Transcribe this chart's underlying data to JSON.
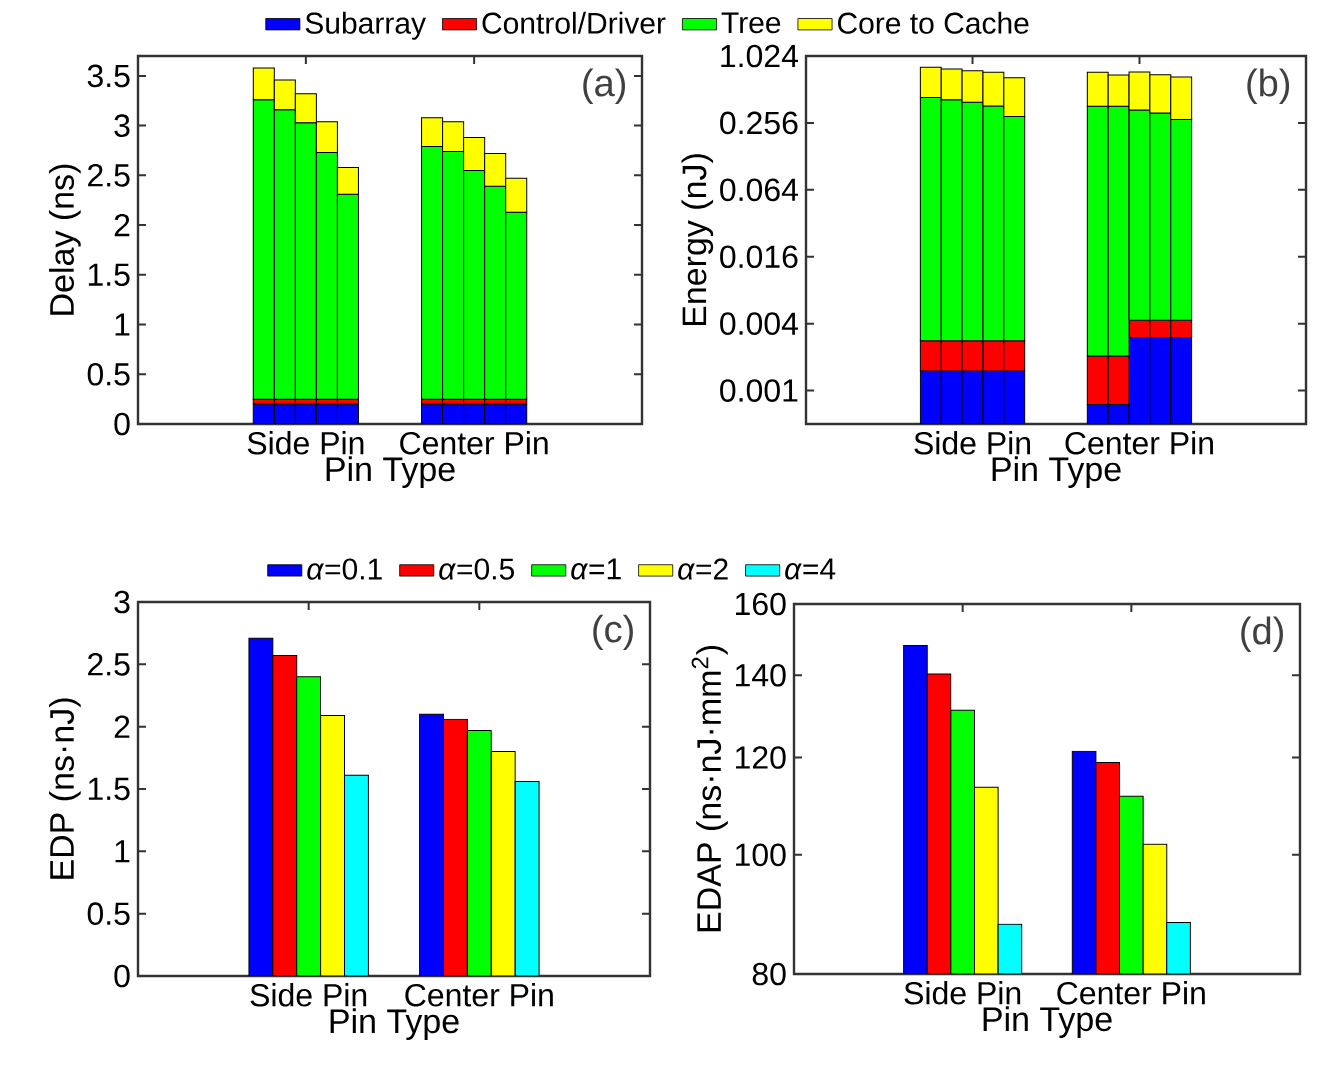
{
  "chart_data": [
    {
      "type": "bar",
      "stacked": true,
      "legend": "top",
      "xlabel": "Pin Type",
      "ylabel": "Delay (ns)",
      "annotations": [
        "(a)"
      ],
      "ylim": [
        0,
        3.7
      ],
      "yticks": [
        0,
        0.5,
        1,
        1.5,
        2,
        2.5,
        3,
        3.5
      ],
      "categories": [
        null,
        null,
        "Side Pin",
        null,
        null,
        null,
        null,
        null,
        null,
        null,
        "Center Pin",
        null,
        null
      ],
      "series": [
        {
          "name": "Subarray",
          "color": "#0000ff",
          "values": [
            0.2,
            0.2,
            0.2,
            0.2,
            0.2,
            null,
            null,
            null,
            0.2,
            0.2,
            0.2,
            0.2,
            0.2
          ]
        },
        {
          "name": "Control/Driver",
          "color": "#ff0000",
          "values": [
            0.05,
            0.05,
            0.05,
            0.05,
            0.05,
            null,
            null,
            null,
            0.05,
            0.05,
            0.05,
            0.05,
            0.05
          ]
        },
        {
          "name": "Tree",
          "color": "#00ff00",
          "values": [
            3.01,
            2.91,
            2.78,
            2.48,
            2.06,
            null,
            null,
            null,
            2.54,
            2.49,
            2.3,
            2.14,
            1.88
          ]
        },
        {
          "name": "Core to Cache",
          "color": "#ffff00",
          "values": [
            0.32,
            0.3,
            0.29,
            0.31,
            0.27,
            null,
            null,
            null,
            0.29,
            0.3,
            0.33,
            0.33,
            0.34
          ]
        }
      ]
    },
    {
      "type": "bar",
      "stacked": true,
      "log": true,
      "xlabel": "Pin Type",
      "ylabel": "Energy (nJ)",
      "annotations": [
        "(b)"
      ],
      "ylim": [
        0.0005,
        1.024
      ],
      "yticks": [
        0.001,
        0.004,
        0.016,
        0.064,
        0.256,
        1.024
      ],
      "categories": [
        null,
        null,
        "Side Pin",
        null,
        null,
        null,
        null,
        null,
        null,
        null,
        "Center Pin",
        null,
        null
      ],
      "series": [
        {
          "color": "#0000ff",
          "values": [
            0.0015,
            0.0015,
            0.0015,
            0.0015,
            0.0015,
            null,
            null,
            null,
            0.00075,
            0.00075,
            0.003,
            0.003,
            0.003
          ]
        },
        {
          "color": "#ff0000",
          "values": [
            0.0013,
            0.0013,
            0.0013,
            0.0013,
            0.0013,
            null,
            null,
            null,
            0.0013,
            0.0013,
            0.0013,
            0.0013,
            0.0013
          ]
        },
        {
          "color": "#00ff00",
          "values": [
            0.43,
            0.41,
            0.39,
            0.36,
            0.29,
            null,
            null,
            null,
            0.36,
            0.36,
            0.33,
            0.31,
            0.27
          ]
        },
        {
          "color": "#ffff00",
          "values": [
            0.38,
            0.37,
            0.36,
            0.37,
            0.36,
            null,
            null,
            null,
            0.37,
            0.33,
            0.4,
            0.38,
            0.39
          ]
        }
      ]
    },
    {
      "type": "bar",
      "legend": "top",
      "xlabel": "Pin Type",
      "ylabel": "EDP (ns·nJ)",
      "annotations": [
        "(c)"
      ],
      "ylim": [
        0,
        3
      ],
      "yticks": [
        0,
        0.5,
        1,
        1.5,
        2,
        2.5,
        3
      ],
      "categories": [
        "Side Pin",
        "Center Pin"
      ],
      "series": [
        {
          "name": "*α*=0.1",
          "color": "#0000ff",
          "values": [
            2.71,
            2.1
          ]
        },
        {
          "name": "*α*=0.5",
          "color": "#ff0000",
          "values": [
            2.57,
            2.06
          ]
        },
        {
          "name": "*α*=1",
          "color": "#00ff00",
          "values": [
            2.4,
            1.97
          ]
        },
        {
          "name": "*α*=2",
          "color": "#ffff00",
          "values": [
            2.09,
            1.8
          ]
        },
        {
          "name": "*α*=4",
          "color": "#00ffff",
          "values": [
            1.61,
            1.56
          ]
        }
      ]
    },
    {
      "type": "bar",
      "log": true,
      "xlabel": "Pin Type",
      "ylabel": "EDAP (ns·nJ·mm$^{2}$)",
      "annotations": [
        "(d)"
      ],
      "ylim": [
        80,
        160
      ],
      "yticks": [
        80,
        100,
        120,
        140,
        160
      ],
      "categories": [
        "Side Pin",
        "Center Pin"
      ],
      "series": [
        {
          "color": "#0000ff",
          "values": [
            148,
            121.4
          ]
        },
        {
          "color": "#ff0000",
          "values": [
            140.3,
            118.9
          ]
        },
        {
          "color": "#00ff00",
          "values": [
            131.1,
            111.6
          ]
        },
        {
          "color": "#ffff00",
          "values": [
            113.5,
            102
          ]
        },
        {
          "color": "#00ffff",
          "values": [
            87.8,
            88.1
          ]
        }
      ]
    }
  ]
}
